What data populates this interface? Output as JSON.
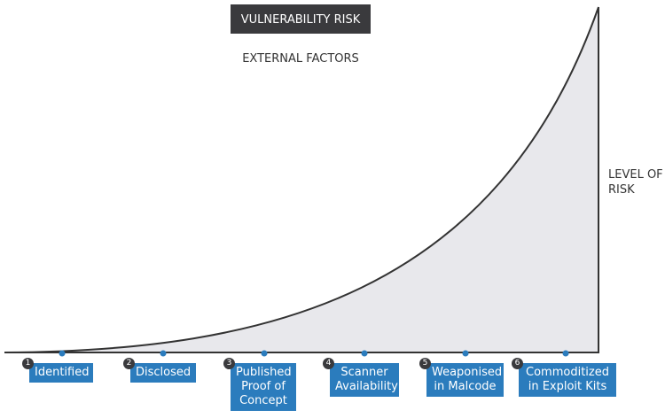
{
  "title": "VULNERABILITY RISK",
  "subtitle": "EXTERNAL FACTORS",
  "axis_label": [
    "LEVEL OF",
    "RISK"
  ],
  "stages": [
    {
      "number": 1,
      "lines": [
        "Identified"
      ]
    },
    {
      "number": 2,
      "lines": [
        "Disclosed"
      ]
    },
    {
      "number": 3,
      "lines": [
        "Published",
        "Proof of",
        "Concept"
      ]
    },
    {
      "number": 4,
      "lines": [
        "Scanner",
        "Availability"
      ]
    },
    {
      "number": 5,
      "lines": [
        "Weaponised",
        "in Malcode"
      ]
    },
    {
      "number": 6,
      "lines": [
        "Commoditized",
        "in Exploit Kits"
      ]
    }
  ]
}
